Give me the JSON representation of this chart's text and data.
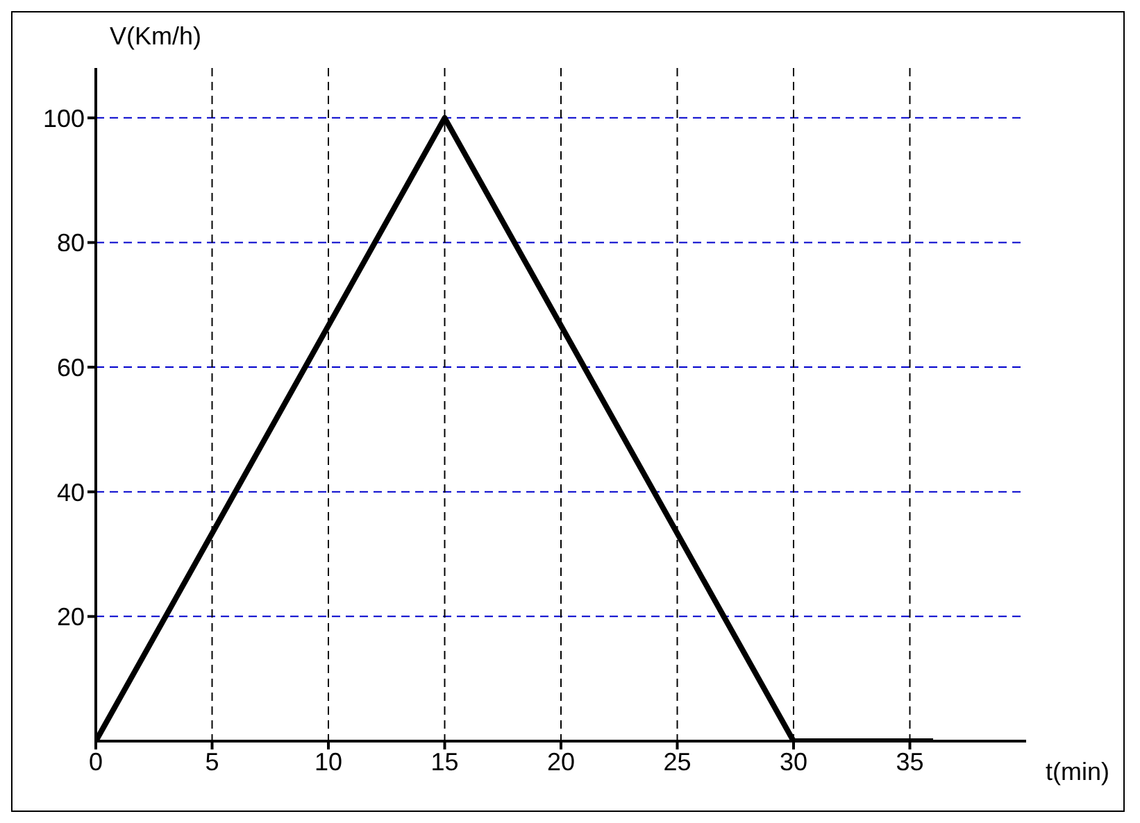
{
  "chart_data": {
    "type": "line",
    "xlabel": "t(min)",
    "ylabel": "V(Km/h)",
    "x": [
      0,
      15,
      30,
      36
    ],
    "series": [
      {
        "color": "#000000",
        "values": [
          0,
          100,
          0,
          0
        ]
      }
    ],
    "xlim": [
      0,
      40
    ],
    "xticks": [
      0,
      5,
      10,
      15,
      20,
      25,
      30,
      35
    ],
    "ylim": [
      0,
      108
    ],
    "yticks": [
      20,
      40,
      60,
      80,
      100
    ],
    "grid": true,
    "marker": "none",
    "line_style": "solid",
    "legend": false
  }
}
